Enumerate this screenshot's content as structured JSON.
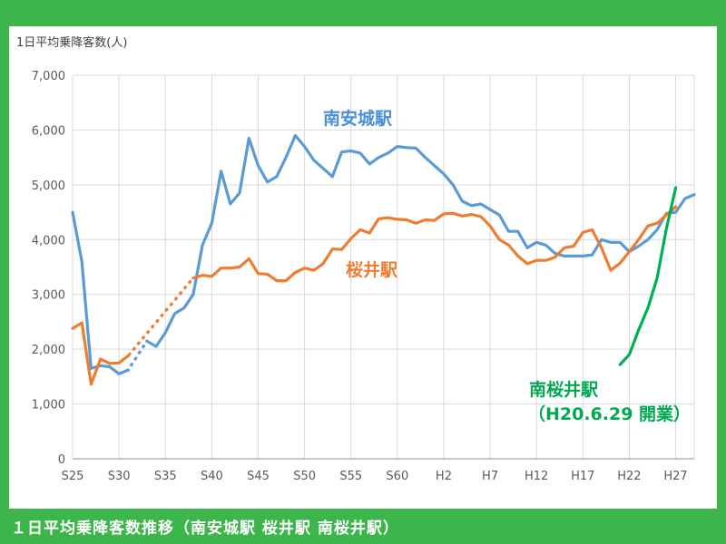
{
  "caption": "１日平均乗降客数推移（南安城駅 桜井駅 南桜井駅）",
  "chart_data": {
    "type": "line",
    "ylabel": "1日平均乗降客数(人)",
    "ylim": [
      0,
      7000
    ],
    "yticks": [
      "0",
      "1,000",
      "2,000",
      "3,000",
      "4,000",
      "5,000",
      "6,000",
      "7,000"
    ],
    "x_tick_labels": [
      "S25",
      "S30",
      "S35",
      "S40",
      "S45",
      "S50",
      "S55",
      "S60",
      "H2",
      "H7",
      "H12",
      "H17",
      "H22",
      "H27"
    ],
    "grid": true,
    "series": [
      {
        "name": "南安城駅",
        "color": "#5b9bd5",
        "points": [
          [
            25,
            4500
          ],
          [
            26,
            3600
          ],
          [
            27,
            1650
          ],
          [
            28,
            1700
          ],
          [
            29,
            1680
          ],
          [
            30,
            1550
          ],
          [
            31,
            1620
          ],
          [
            33,
            2150
          ],
          [
            34,
            2050
          ],
          [
            35,
            2300
          ],
          [
            36,
            2650
          ],
          [
            37,
            2750
          ],
          [
            38,
            3000
          ],
          [
            39,
            3900
          ],
          [
            40,
            4300
          ],
          [
            41,
            5250
          ],
          [
            42,
            4650
          ],
          [
            43,
            4850
          ],
          [
            44,
            5850
          ],
          [
            45,
            5350
          ],
          [
            46,
            5050
          ],
          [
            47,
            5150
          ],
          [
            48,
            5500
          ],
          [
            49,
            5900
          ],
          [
            50,
            5700
          ],
          [
            51,
            5450
          ],
          [
            52,
            5300
          ],
          [
            53,
            5150
          ],
          [
            54,
            5600
          ],
          [
            55,
            5620
          ],
          [
            56,
            5580
          ],
          [
            57,
            5380
          ],
          [
            58,
            5500
          ],
          [
            59,
            5580
          ],
          [
            60,
            5700
          ],
          [
            61,
            5680
          ],
          [
            62,
            5670
          ],
          [
            63,
            5500
          ],
          [
            64,
            5350
          ],
          [
            65,
            5200
          ],
          [
            66,
            5000
          ],
          [
            67,
            4700
          ],
          [
            68,
            4620
          ],
          [
            69,
            4650
          ],
          [
            70,
            4550
          ],
          [
            71,
            4450
          ],
          [
            72,
            4150
          ],
          [
            73,
            4150
          ],
          [
            74,
            3850
          ],
          [
            75,
            3950
          ],
          [
            76,
            3900
          ],
          [
            77,
            3750
          ],
          [
            78,
            3700
          ],
          [
            79,
            3700
          ],
          [
            80,
            3700
          ],
          [
            81,
            3720
          ],
          [
            82,
            4000
          ],
          [
            83,
            3950
          ],
          [
            84,
            3950
          ],
          [
            85,
            3780
          ],
          [
            86,
            3880
          ],
          [
            87,
            4000
          ],
          [
            88,
            4180
          ],
          [
            89,
            4480
          ],
          [
            90,
            4500
          ],
          [
            91,
            4750
          ],
          [
            92,
            4820
          ]
        ],
        "dashed_segment": [
          [
            30,
            1550
          ],
          [
            31,
            1620
          ],
          [
            33,
            2150
          ]
        ]
      },
      {
        "name": "桜井駅",
        "color": "#ed7d31",
        "points": [
          [
            25,
            2380
          ],
          [
            26,
            2480
          ],
          [
            27,
            1360
          ],
          [
            28,
            1820
          ],
          [
            29,
            1740
          ],
          [
            30,
            1750
          ],
          [
            31,
            1880
          ],
          [
            38,
            3300
          ],
          [
            39,
            3350
          ],
          [
            40,
            3330
          ],
          [
            41,
            3480
          ],
          [
            42,
            3480
          ],
          [
            43,
            3500
          ],
          [
            44,
            3650
          ],
          [
            45,
            3380
          ],
          [
            46,
            3370
          ],
          [
            47,
            3250
          ],
          [
            48,
            3250
          ],
          [
            49,
            3400
          ],
          [
            50,
            3480
          ],
          [
            51,
            3440
          ],
          [
            52,
            3560
          ],
          [
            53,
            3830
          ],
          [
            54,
            3820
          ],
          [
            55,
            4020
          ],
          [
            56,
            4180
          ],
          [
            57,
            4120
          ],
          [
            58,
            4380
          ],
          [
            59,
            4400
          ],
          [
            60,
            4370
          ],
          [
            61,
            4360
          ],
          [
            62,
            4300
          ],
          [
            63,
            4360
          ],
          [
            64,
            4350
          ],
          [
            65,
            4470
          ],
          [
            66,
            4480
          ],
          [
            67,
            4430
          ],
          [
            68,
            4460
          ],
          [
            69,
            4420
          ],
          [
            70,
            4250
          ],
          [
            71,
            4000
          ],
          [
            72,
            3900
          ],
          [
            73,
            3700
          ],
          [
            74,
            3560
          ],
          [
            75,
            3620
          ],
          [
            76,
            3620
          ],
          [
            77,
            3680
          ],
          [
            78,
            3850
          ],
          [
            79,
            3880
          ],
          [
            80,
            4130
          ],
          [
            81,
            4180
          ],
          [
            82,
            3850
          ],
          [
            83,
            3440
          ],
          [
            84,
            3570
          ],
          [
            85,
            3780
          ],
          [
            86,
            4000
          ],
          [
            87,
            4250
          ],
          [
            88,
            4300
          ],
          [
            89,
            4450
          ],
          [
            90,
            4600
          ]
        ],
        "dashed_segment": [
          [
            31,
            1880
          ],
          [
            38,
            3300
          ]
        ]
      },
      {
        "name": "南桜井駅",
        "color": "#00b050",
        "points": [
          [
            84,
            1720
          ],
          [
            85,
            1900
          ],
          [
            86,
            2350
          ],
          [
            87,
            2750
          ],
          [
            88,
            3300
          ],
          [
            89,
            4200
          ],
          [
            90,
            4950
          ]
        ]
      }
    ],
    "annotations": {
      "minami_anjo": "南安城駅",
      "sakurai": "桜井駅",
      "minami_sakurai": "南桜井駅",
      "minami_sakurai_open": "（H20.6.29 開業）"
    }
  }
}
